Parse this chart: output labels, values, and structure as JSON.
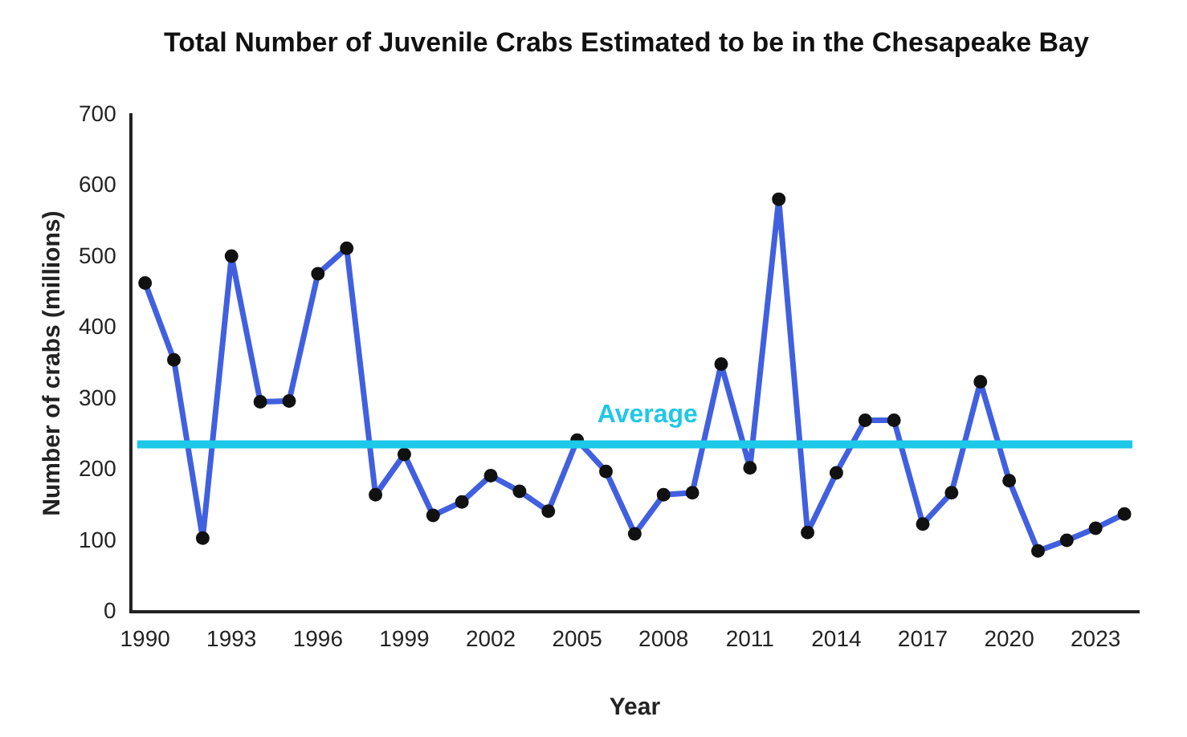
{
  "chart_data": {
    "type": "line",
    "title": "Total Number of Juvenile Crabs Estimated to be in the Chesapeake Bay",
    "xlabel": "Year",
    "ylabel": "Number of crabs (millions)",
    "categories": [
      "1990",
      null,
      null,
      "1993",
      null,
      null,
      "1996",
      null,
      null,
      "1999",
      null,
      null,
      "2002",
      null,
      null,
      "2005",
      null,
      null,
      "2008",
      null,
      null,
      "2011",
      null,
      null,
      "2014",
      null,
      null,
      "2017",
      null,
      null,
      "2020",
      null,
      null,
      "2023",
      null
    ],
    "series": [
      {
        "color": "#4060e0",
        "values": [
          463,
          355,
          104,
          501,
          296,
          297,
          476,
          512,
          165,
          222,
          136,
          155,
          192,
          170,
          142,
          242,
          198,
          110,
          165,
          168,
          349,
          203,
          581,
          112,
          196,
          270,
          270,
          124,
          168,
          324,
          185,
          86,
          101,
          118,
          138
        ]
      }
    ],
    "ylim": [
      0,
      700
    ],
    "yticks": [
      0,
      100,
      200,
      300,
      400,
      500,
      600,
      700
    ],
    "grid": false,
    "legend": false,
    "marker": "circle",
    "line_style": "solid",
    "ref_lines": [
      {
        "axis": "y",
        "value": 236,
        "label": "Average",
        "color": "#1ec8e8"
      }
    ]
  }
}
